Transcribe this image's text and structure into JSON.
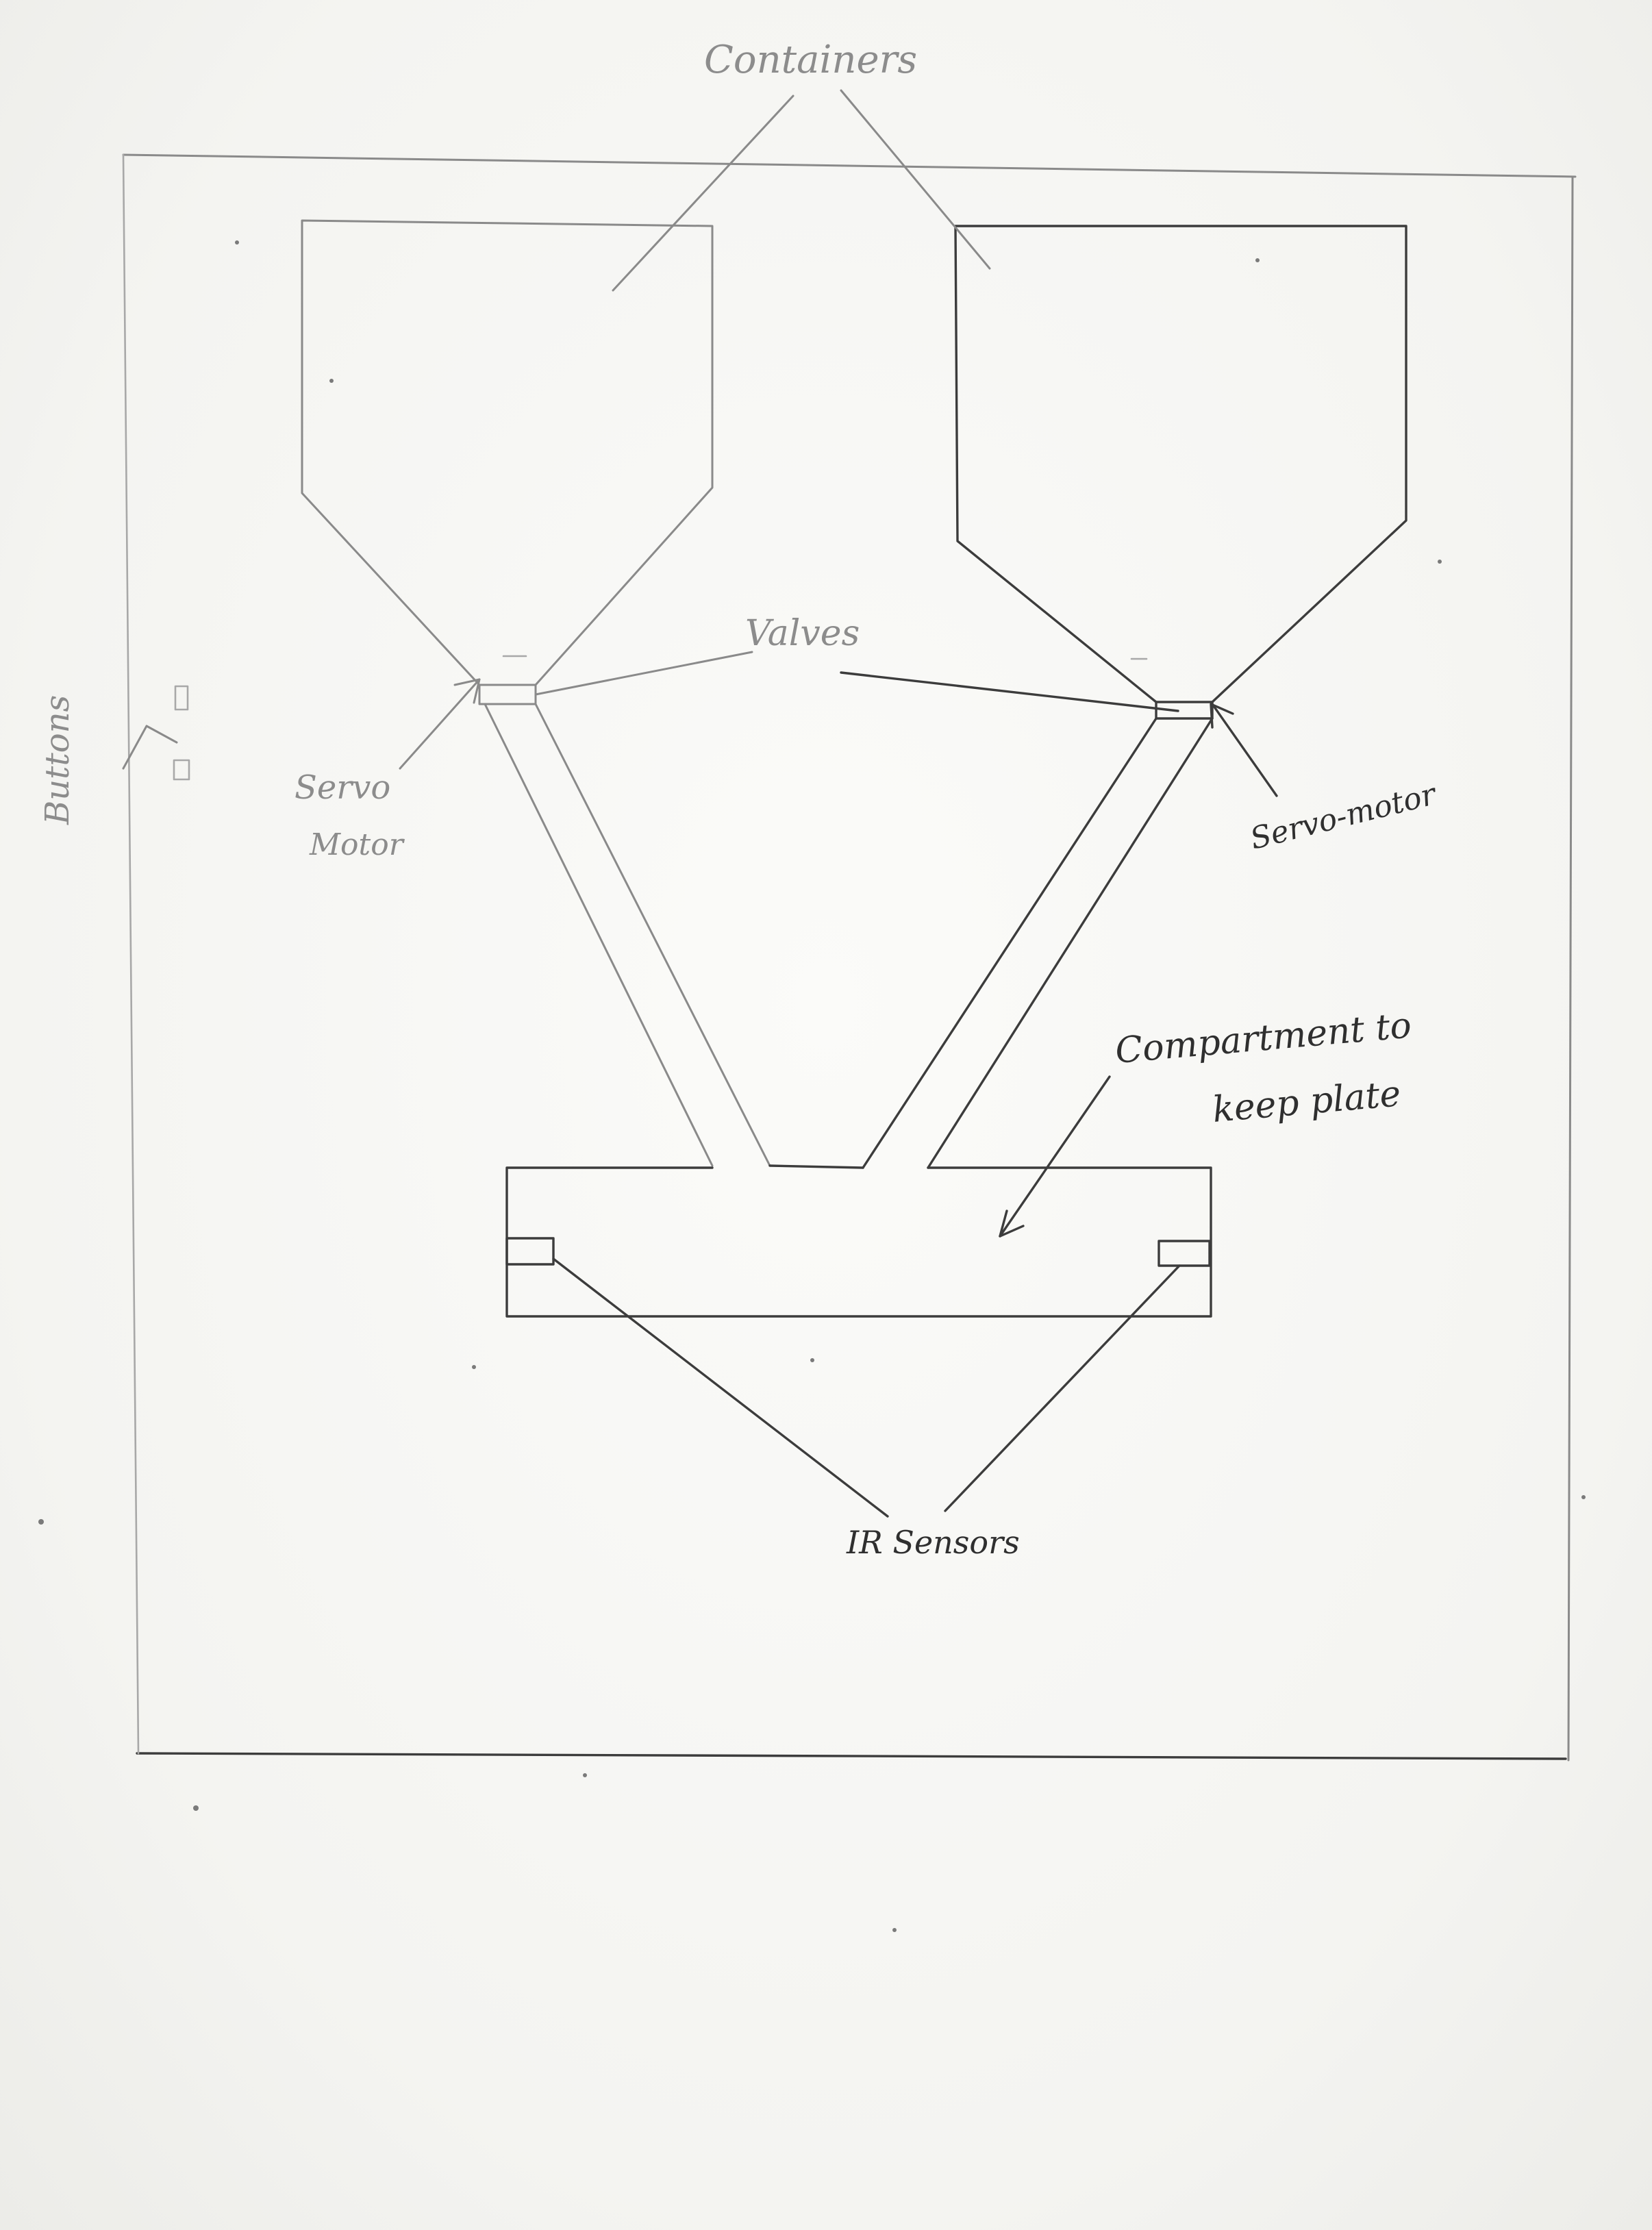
{
  "labels": {
    "containers": "Containers",
    "valves": "Valves",
    "servo_left_line1": "Servo",
    "servo_left_line2": "Motor",
    "servo_right": "Servo-motor",
    "compartment_line1": "Compartment to",
    "compartment_line2": "keep plate",
    "ir_sensors": "IR Sensors",
    "buttons": "Buttons"
  }
}
